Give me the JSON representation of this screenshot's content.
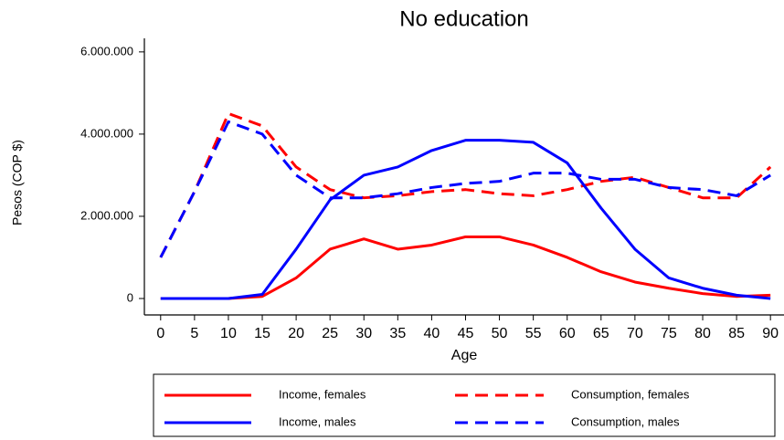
{
  "chart_data": {
    "type": "line",
    "title": "No education",
    "x_label": "Age",
    "y_label": "Pesos (COP $)",
    "x": [
      0,
      5,
      10,
      15,
      20,
      25,
      30,
      35,
      40,
      45,
      50,
      55,
      60,
      65,
      70,
      75,
      80,
      85,
      90
    ],
    "series": [
      {
        "name": "Income, females",
        "color": "#ff0000",
        "line_style": "solid",
        "values": [
          0,
          0,
          0,
          50000,
          500000,
          1200000,
          1450000,
          1200000,
          1300000,
          1500000,
          1500000,
          1300000,
          1000000,
          650000,
          400000,
          250000,
          120000,
          50000,
          80000
        ]
      },
      {
        "name": "Consumption, females",
        "color": "#ff0000",
        "line_style": "dashed",
        "values": [
          1000000,
          2600000,
          4500000,
          4200000,
          3200000,
          2650000,
          2450000,
          2500000,
          2600000,
          2650000,
          2550000,
          2500000,
          2650000,
          2850000,
          2950000,
          2700000,
          2450000,
          2450000,
          3200000
        ]
      },
      {
        "name": "Income, males",
        "color": "#0000ff",
        "line_style": "solid",
        "values": [
          0,
          0,
          0,
          100000,
          1200000,
          2400000,
          3000000,
          3200000,
          3600000,
          3850000,
          3850000,
          3800000,
          3300000,
          2200000,
          1200000,
          500000,
          250000,
          80000,
          0
        ]
      },
      {
        "name": "Consumption, males",
        "color": "#0000ff",
        "line_style": "dashed",
        "values": [
          1000000,
          2600000,
          4300000,
          4000000,
          3000000,
          2450000,
          2450000,
          2550000,
          2700000,
          2800000,
          2850000,
          3050000,
          3050000,
          2900000,
          2900000,
          2700000,
          2650000,
          2500000,
          3000000
        ]
      }
    ],
    "xlim": [
      -2.4,
      92
    ],
    "xticks": [
      0,
      5,
      10,
      15,
      20,
      25,
      30,
      35,
      40,
      45,
      50,
      55,
      60,
      65,
      70,
      75,
      80,
      85,
      90
    ],
    "ylim": [
      -400000,
      6330000
    ],
    "yticks": [
      0,
      {
        "value": 2000000,
        "label": "2.000.000"
      },
      {
        "value": 4000000,
        "label": "4.000.000"
      },
      {
        "value": 6000000,
        "label": "6.000.000"
      }
    ],
    "grid": false,
    "legend_position": "bottom"
  }
}
